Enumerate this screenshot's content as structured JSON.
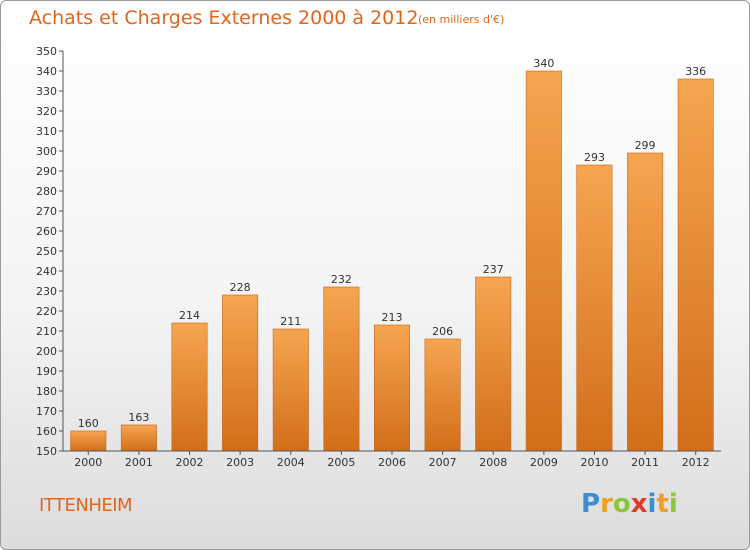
{
  "chart_data": {
    "type": "bar",
    "title": "Achats et Charges Externes 2000 à 2012",
    "subtitle": "(en milliers d'€)",
    "categories": [
      "2000",
      "2001",
      "2002",
      "2003",
      "2004",
      "2005",
      "2006",
      "2007",
      "2008",
      "2009",
      "2010",
      "2011",
      "2012"
    ],
    "values": [
      160,
      163,
      214,
      228,
      211,
      232,
      213,
      206,
      237,
      340,
      293,
      299,
      336
    ],
    "ylim": [
      150,
      350
    ],
    "ytick_step": 10,
    "grid": false,
    "legend": "none",
    "colors": {
      "bar_top": "#f6a550",
      "bar_bottom": "#d26e1a",
      "bar_edge": "#c8661a",
      "text": "#e0661c",
      "axis": "#555555"
    }
  },
  "footer": {
    "commune": "ITTENHEIM",
    "logo": "Proxiti",
    "logo_colors": [
      "#3b8fd0",
      "#f0a01e",
      "#8cc63f",
      "#e03a2a",
      "#3b8fd0",
      "#f0a01e",
      "#8cc63f"
    ]
  }
}
